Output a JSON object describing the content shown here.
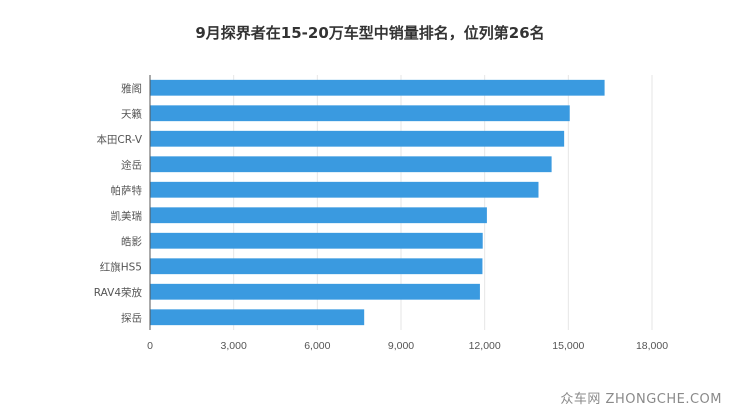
{
  "watermark": "众车网 ZHONGCHE.COM",
  "colors": {
    "bar": "#3a9ae0",
    "grid": "#e6e6e6",
    "text": "#555555",
    "title": "#333333"
  },
  "chart_data": {
    "type": "bar",
    "orientation": "horizontal",
    "title": "9月探界者在15-20万车型中销量排名，位列第26名",
    "categories": [
      "雅阁",
      "天籁",
      "本田CR-V",
      "途岳",
      "帕萨特",
      "凯美瑞",
      "皓影",
      "红旗HS5",
      "RAV4荣放",
      "探岳"
    ],
    "values": [
      16300,
      15050,
      14850,
      14400,
      13930,
      12080,
      11930,
      11920,
      11830,
      7680
    ],
    "xlim": [
      0,
      18000
    ],
    "xticks": [
      0,
      3000,
      6000,
      9000,
      12000,
      15000,
      18000
    ],
    "xtick_labels": [
      "0",
      "3,000",
      "6,000",
      "9,000",
      "12,000",
      "15,000",
      "18,000"
    ],
    "grid": true
  }
}
